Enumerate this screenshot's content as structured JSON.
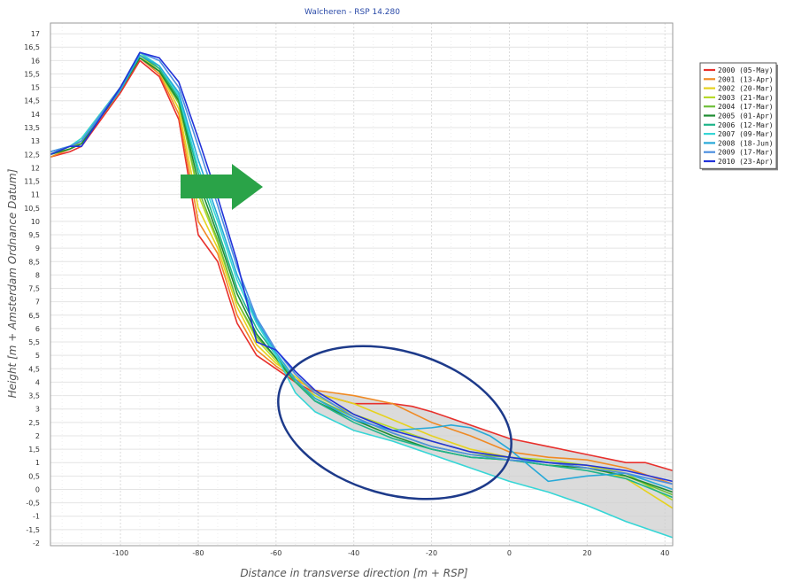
{
  "chart_data": {
    "type": "line",
    "title": "Walcheren - RSP 14.280",
    "xlabel": "Distance in transverse direction [m + RSP]",
    "ylabel": "Height [m + Amsterdam Ordnance Datum]",
    "xlim": [
      -118,
      42
    ],
    "ylim": [
      -2.1,
      17.4
    ],
    "xticks": [
      -100,
      -80,
      -60,
      -40,
      -20,
      0,
      20,
      40
    ],
    "yticks": [
      -2,
      -1.5,
      -1,
      -0.5,
      0,
      0.5,
      1,
      1.5,
      2,
      2.5,
      3,
      3.5,
      4,
      4.5,
      5,
      5.5,
      6,
      6.5,
      7,
      7.5,
      8,
      8.5,
      9,
      9.5,
      10,
      10.5,
      11,
      11.5,
      12,
      12.5,
      13,
      13.5,
      14,
      14.5,
      15,
      15.5,
      16,
      16.5,
      17
    ],
    "ytick_labels": [
      "-2",
      "-1,5",
      "-1",
      "-0,5",
      "0",
      "0,5",
      "1",
      "1,5",
      "2",
      "2,5",
      "3",
      "3,5",
      "4",
      "4,5",
      "5",
      "5,5",
      "6",
      "6,5",
      "7",
      "7,5",
      "8",
      "8,5",
      "9",
      "9,5",
      "10",
      "10,5",
      "11",
      "11,5",
      "12",
      "12,5",
      "13",
      "13,5",
      "14",
      "14,5",
      "15",
      "15,5",
      "16",
      "16,5",
      "17"
    ],
    "grid": true,
    "legend_position": "outside-right",
    "series": [
      {
        "name": "2000 (05-May)",
        "color": "#e8302c",
        "x": [
          -118,
          -113,
          -110,
          -100,
          -95,
          -90,
          -85,
          -80,
          -75,
          -70,
          -65,
          -60,
          -55,
          -50,
          -40,
          -30,
          -25,
          -20,
          -10,
          0,
          10,
          20,
          30,
          35,
          42
        ],
        "y": [
          12.4,
          12.6,
          12.8,
          14.8,
          16.0,
          15.4,
          13.8,
          9.5,
          8.5,
          6.2,
          5.0,
          4.5,
          4.0,
          3.6,
          3.2,
          3.2,
          3.1,
          2.9,
          2.4,
          1.9,
          1.6,
          1.3,
          1.0,
          1.0,
          0.7
        ]
      },
      {
        "name": "2001 (13-Apr)",
        "color": "#f08a24",
        "x": [
          -118,
          -113,
          -110,
          -100,
          -95,
          -90,
          -85,
          -80,
          -75,
          -70,
          -65,
          -60,
          -55,
          -50,
          -40,
          -30,
          -20,
          -10,
          0,
          10,
          20,
          30,
          42
        ],
        "y": [
          12.4,
          12.7,
          12.9,
          14.9,
          16.1,
          15.5,
          14.0,
          10.0,
          8.8,
          6.5,
          5.2,
          4.6,
          4.1,
          3.7,
          3.5,
          3.2,
          2.5,
          2.0,
          1.4,
          1.2,
          1.1,
          0.8,
          0.2
        ]
      },
      {
        "name": "2002 (20-Mar)",
        "color": "#e6d21e",
        "x": [
          -118,
          -113,
          -110,
          -100,
          -95,
          -90,
          -85,
          -80,
          -75,
          -70,
          -65,
          -60,
          -55,
          -50,
          -40,
          -30,
          -20,
          -10,
          0,
          10,
          20,
          30,
          42
        ],
        "y": [
          12.5,
          12.8,
          13.0,
          15.0,
          16.2,
          15.6,
          14.2,
          10.5,
          9.0,
          6.8,
          5.4,
          4.7,
          4.2,
          3.6,
          3.2,
          2.6,
          2.0,
          1.5,
          1.2,
          1.0,
          0.9,
          0.4,
          -0.7
        ]
      },
      {
        "name": "2003 (21-Mar)",
        "color": "#b7d92a",
        "x": [
          -118,
          -113,
          -110,
          -100,
          -95,
          -90,
          -85,
          -80,
          -75,
          -70,
          -65,
          -60,
          -55,
          -50,
          -40,
          -30,
          -20,
          -10,
          0,
          10,
          20,
          30,
          42
        ],
        "y": [
          12.5,
          12.8,
          13.1,
          15.0,
          16.3,
          15.7,
          14.5,
          11.0,
          9.2,
          7.0,
          5.6,
          4.8,
          4.0,
          3.5,
          2.8,
          2.3,
          1.8,
          1.4,
          1.2,
          1.1,
          0.9,
          0.6,
          -0.4
        ]
      },
      {
        "name": "2004 (17-Mar)",
        "color": "#6fbf3a",
        "x": [
          -118,
          -113,
          -110,
          -100,
          -95,
          -90,
          -85,
          -80,
          -75,
          -70,
          -65,
          -60,
          -55,
          -50,
          -40,
          -30,
          -20,
          -10,
          0,
          10,
          20,
          30,
          42
        ],
        "y": [
          12.5,
          12.7,
          13.0,
          14.9,
          16.1,
          15.6,
          14.4,
          11.2,
          9.3,
          7.0,
          5.7,
          4.9,
          4.0,
          3.4,
          2.7,
          2.1,
          1.6,
          1.3,
          1.2,
          1.0,
          0.8,
          0.5,
          -0.2
        ]
      },
      {
        "name": "2005 (01-Apr)",
        "color": "#1e8c32",
        "x": [
          -118,
          -113,
          -110,
          -100,
          -95,
          -90,
          -85,
          -80,
          -75,
          -70,
          -65,
          -60,
          -55,
          -50,
          -40,
          -30,
          -20,
          -10,
          0,
          10,
          20,
          30,
          42
        ],
        "y": [
          12.5,
          12.7,
          12.9,
          14.9,
          16.1,
          15.6,
          14.5,
          11.5,
          9.5,
          7.3,
          5.8,
          4.9,
          4.0,
          3.3,
          2.6,
          2.0,
          1.5,
          1.2,
          1.1,
          0.9,
          0.8,
          0.5,
          -0.1
        ]
      },
      {
        "name": "2006 (12-Mar)",
        "color": "#1fb58a",
        "x": [
          -118,
          -113,
          -110,
          -100,
          -95,
          -90,
          -85,
          -80,
          -75,
          -70,
          -65,
          -60,
          -55,
          -50,
          -40,
          -30,
          -20,
          -10,
          0,
          10,
          20,
          30,
          42
        ],
        "y": [
          12.5,
          12.8,
          13.0,
          15.0,
          16.2,
          15.7,
          14.6,
          11.8,
          9.7,
          7.5,
          6.0,
          5.0,
          4.0,
          3.3,
          2.5,
          1.9,
          1.5,
          1.2,
          1.1,
          0.9,
          0.7,
          0.4,
          -0.3
        ]
      },
      {
        "name": "2007 (09-Mar)",
        "color": "#36d6d6",
        "x": [
          -118,
          -113,
          -110,
          -100,
          -95,
          -90,
          -85,
          -80,
          -75,
          -70,
          -65,
          -60,
          -55,
          -50,
          -40,
          -30,
          -20,
          -10,
          0,
          10,
          20,
          30,
          42
        ],
        "y": [
          12.6,
          12.8,
          13.1,
          15.0,
          16.3,
          15.8,
          14.7,
          12.0,
          10.0,
          7.8,
          6.2,
          5.0,
          3.6,
          2.9,
          2.2,
          1.8,
          1.3,
          0.8,
          0.3,
          -0.1,
          -0.6,
          -1.2,
          -1.8
        ]
      },
      {
        "name": "2008 (18-Jun)",
        "color": "#27a9d8",
        "x": [
          -118,
          -113,
          -110,
          -100,
          -95,
          -90,
          -85,
          -80,
          -75,
          -70,
          -65,
          -60,
          -55,
          -50,
          -40,
          -30,
          -20,
          -15,
          -10,
          -5,
          0,
          5,
          10,
          20,
          30,
          42
        ],
        "y": [
          12.6,
          12.8,
          13.0,
          14.9,
          16.2,
          15.8,
          14.8,
          12.3,
          10.2,
          8.0,
          6.3,
          5.1,
          4.1,
          3.4,
          2.6,
          2.2,
          2.3,
          2.4,
          2.3,
          2.0,
          1.5,
          0.9,
          0.3,
          0.5,
          0.6,
          0.0
        ]
      },
      {
        "name": "2009 (17-Mar)",
        "color": "#4d8fe0",
        "x": [
          -118,
          -113,
          -110,
          -100,
          -95,
          -90,
          -85,
          -80,
          -75,
          -70,
          -65,
          -60,
          -55,
          -50,
          -40,
          -30,
          -20,
          -10,
          0,
          10,
          20,
          30,
          42
        ],
        "y": [
          12.6,
          12.8,
          13.0,
          15.0,
          16.3,
          16.0,
          15.0,
          12.8,
          10.6,
          8.3,
          6.4,
          5.2,
          4.3,
          3.6,
          2.7,
          2.1,
          1.6,
          1.3,
          1.1,
          1.0,
          0.8,
          0.6,
          0.2
        ]
      },
      {
        "name": "2010 (23-Apr)",
        "color": "#2233d9",
        "x": [
          -118,
          -113,
          -110,
          -100,
          -95,
          -90,
          -85,
          -80,
          -75,
          -70,
          -65,
          -60,
          -55,
          -50,
          -40,
          -30,
          -20,
          -10,
          0,
          10,
          20,
          30,
          42
        ],
        "y": [
          12.5,
          12.8,
          12.8,
          15.0,
          16.3,
          16.1,
          15.2,
          13.1,
          10.9,
          8.5,
          5.5,
          5.2,
          4.4,
          3.7,
          2.8,
          2.2,
          1.8,
          1.4,
          1.2,
          1.0,
          0.9,
          0.7,
          0.3
        ]
      }
    ],
    "shaded_band": {
      "color": "#cfcfcf",
      "description": "envelope between min and max of series"
    }
  },
  "annotations": {
    "arrow_color": "#2aa348",
    "ellipse_color": "#1d3a8a"
  }
}
